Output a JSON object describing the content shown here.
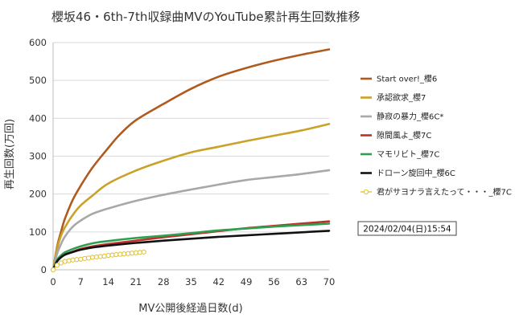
{
  "chart_data": {
    "type": "line",
    "title": "櫻坂46・6th-7th収録曲MVのYouTube累計再生回数推移",
    "xlabel": "MV公開後経過日数(d)",
    "ylabel": "再生回数(万回)",
    "xlim": [
      0,
      70
    ],
    "ylim": [
      0,
      600
    ],
    "xticks": [
      "0",
      "7",
      "14",
      "21",
      "28",
      "35",
      "42",
      "49",
      "56",
      "63",
      "70"
    ],
    "yticks": [
      "0",
      "100",
      "200",
      "300",
      "400",
      "500",
      "600"
    ],
    "grid": "horizontal",
    "legend_position": "right",
    "annotation": "2024/02/04(日)15:54",
    "series": [
      {
        "name": "Start over!_櫻6",
        "color": "#b05a1e",
        "marker": "none",
        "x": [
          0,
          1,
          2,
          3,
          5,
          7,
          10,
          14,
          17,
          21,
          28,
          35,
          42,
          49,
          56,
          63,
          70
        ],
        "y": [
          0,
          60,
          100,
          135,
          185,
          222,
          270,
          322,
          358,
          395,
          438,
          478,
          510,
          533,
          552,
          568,
          582
        ]
      },
      {
        "name": "承認欲求_櫻7",
        "color": "#c9a227",
        "marker": "none",
        "x": [
          0,
          1,
          2,
          3,
          5,
          7,
          10,
          14,
          21,
          28,
          35,
          42,
          49,
          56,
          63,
          70
        ],
        "y": [
          0,
          55,
          90,
          112,
          145,
          170,
          196,
          228,
          262,
          288,
          310,
          325,
          340,
          354,
          368,
          385
        ]
      },
      {
        "name": "静寂の暴力_櫻6C*",
        "color": "#a8a8a8",
        "marker": "none",
        "x": [
          0,
          1,
          2,
          3,
          5,
          7,
          10,
          14,
          21,
          28,
          35,
          42,
          49,
          56,
          63,
          70
        ],
        "y": [
          0,
          42,
          68,
          88,
          114,
          130,
          148,
          162,
          182,
          198,
          212,
          225,
          237,
          245,
          253,
          263
        ]
      },
      {
        "name": "隙間風よ_櫻7C",
        "color": "#c0302a",
        "marker": "none",
        "x": [
          0,
          1,
          2,
          3,
          5,
          7,
          10,
          14,
          21,
          28,
          35,
          42,
          49,
          56,
          63,
          70
        ],
        "y": [
          0,
          22,
          33,
          40,
          48,
          55,
          62,
          68,
          77,
          86,
          94,
          102,
          110,
          116,
          122,
          128
        ]
      },
      {
        "name": "マモリビト_櫻7C",
        "color": "#2e9e4f",
        "marker": "none",
        "x": [
          0,
          1,
          2,
          3,
          5,
          7,
          10,
          14,
          21,
          28,
          35,
          42,
          49,
          56,
          63,
          70
        ],
        "y": [
          0,
          26,
          38,
          46,
          55,
          62,
          70,
          76,
          84,
          90,
          97,
          104,
          109,
          114,
          118,
          122
        ]
      },
      {
        "name": "ドローン旋回中_櫻6C",
        "color": "#111111",
        "marker": "none",
        "x": [
          0,
          1,
          2,
          3,
          5,
          7,
          10,
          14,
          21,
          28,
          35,
          42,
          49,
          56,
          63,
          70
        ],
        "y": [
          0,
          22,
          33,
          40,
          47,
          53,
          59,
          64,
          71,
          77,
          82,
          87,
          91,
          95,
          99,
          103
        ]
      },
      {
        "name": "君がサヨナラ言えたって・・・_櫻7C",
        "color": "#e0c030",
        "marker": "circle",
        "x": [
          0,
          1,
          2,
          3,
          4,
          5,
          6,
          7,
          8,
          9,
          10,
          11,
          12,
          13,
          14,
          15,
          16,
          17,
          18,
          19,
          20,
          21,
          22,
          23
        ],
        "y": [
          0,
          12,
          18,
          22,
          24,
          26,
          27,
          28,
          30,
          31,
          33,
          34,
          35,
          36,
          38,
          39,
          40,
          41,
          42,
          43,
          44,
          45,
          46,
          47
        ]
      }
    ]
  }
}
